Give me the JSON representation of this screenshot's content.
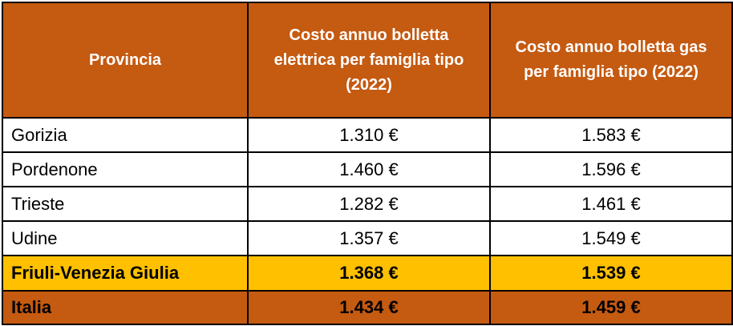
{
  "table": {
    "headers": [
      "Provincia",
      "Costo annuo bolletta elettrica per famiglia tipo (2022)",
      "Costo annuo bolletta gas per famiglia tipo (2022)"
    ],
    "rows": [
      {
        "provincia": "Gorizia",
        "elettrica": "1.310 €",
        "gas": "1.583 €"
      },
      {
        "provincia": "Pordenone",
        "elettrica": "1.460 €",
        "gas": "1.596 €"
      },
      {
        "provincia": "Trieste",
        "elettrica": "1.282 €",
        "gas": "1.461 €"
      },
      {
        "provincia": "Udine",
        "elettrica": "1.357 €",
        "gas": "1.549 €"
      },
      {
        "provincia": "Friuli-Venezia Giulia",
        "elettrica": "1.368 €",
        "gas": "1.539 €"
      },
      {
        "provincia": "Italia",
        "elettrica": "1.434 €",
        "gas": "1.459 €"
      }
    ]
  },
  "colors": {
    "header_bg": "#c55a11",
    "header_text": "#ffffff",
    "region_row_bg": "#ffc000",
    "nation_row_bg": "#c55a11",
    "border": "#000000"
  }
}
